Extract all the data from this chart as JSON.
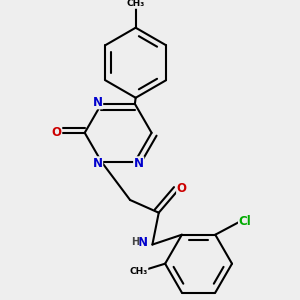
{
  "background_color": "#eeeeee",
  "bond_color": "#000000",
  "bond_width": 1.5,
  "atom_colors": {
    "N": "#0000cc",
    "O": "#cc0000",
    "Cl": "#00aa00",
    "C": "#000000",
    "H": "#444444"
  },
  "font_size_atom": 8.5,
  "font_size_small": 7.0
}
